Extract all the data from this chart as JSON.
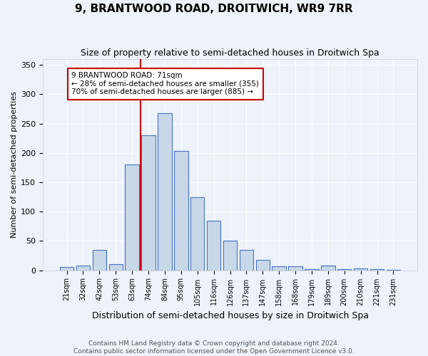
{
  "title": "9, BRANTWOOD ROAD, DROITWICH, WR9 7RR",
  "subtitle": "Size of property relative to semi-detached houses in Droitwich Spa",
  "xlabel": "Distribution of semi-detached houses by size in Droitwich Spa",
  "ylabel": "Number of semi-detached properties",
  "footnote1": "Contains HM Land Registry data © Crown copyright and database right 2024.",
  "footnote2": "Contains public sector information licensed under the Open Government Licence v3.0.",
  "bin_labels": [
    "21sqm",
    "32sqm",
    "42sqm",
    "53sqm",
    "63sqm",
    "74sqm",
    "84sqm",
    "95sqm",
    "105sqm",
    "116sqm",
    "126sqm",
    "137sqm",
    "147sqm",
    "158sqm",
    "168sqm",
    "179sqm",
    "189sqm",
    "200sqm",
    "210sqm",
    "221sqm",
    "231sqm"
  ],
  "bar_values": [
    5,
    8,
    35,
    10,
    180,
    230,
    268,
    203,
    125,
    85,
    50,
    35,
    18,
    7,
    7,
    2,
    8,
    2,
    3,
    2,
    1
  ],
  "bar_color": "#c8d8e8",
  "bar_edge_color": "#4472c4",
  "vline_x": 4.5,
  "annotation_title": "9 BRANTWOOD ROAD: 71sqm",
  "annotation_line1": "← 28% of semi-detached houses are smaller (355)",
  "annotation_line2": "70% of semi-detached houses are larger (885) →",
  "vline_color": "#cc0000",
  "annotation_box_color": "#cc0000",
  "ylim": [
    0,
    360
  ],
  "yticks": [
    0,
    50,
    100,
    150,
    200,
    250,
    300,
    350
  ],
  "background_color": "#eef2fb",
  "plot_bg_color": "#eef2fb",
  "title_fontsize": 11,
  "subtitle_fontsize": 9,
  "xlabel_fontsize": 9,
  "ylabel_fontsize": 8,
  "tick_fontsize": 7,
  "annotation_fontsize": 7.5,
  "footnote_fontsize": 6.5
}
